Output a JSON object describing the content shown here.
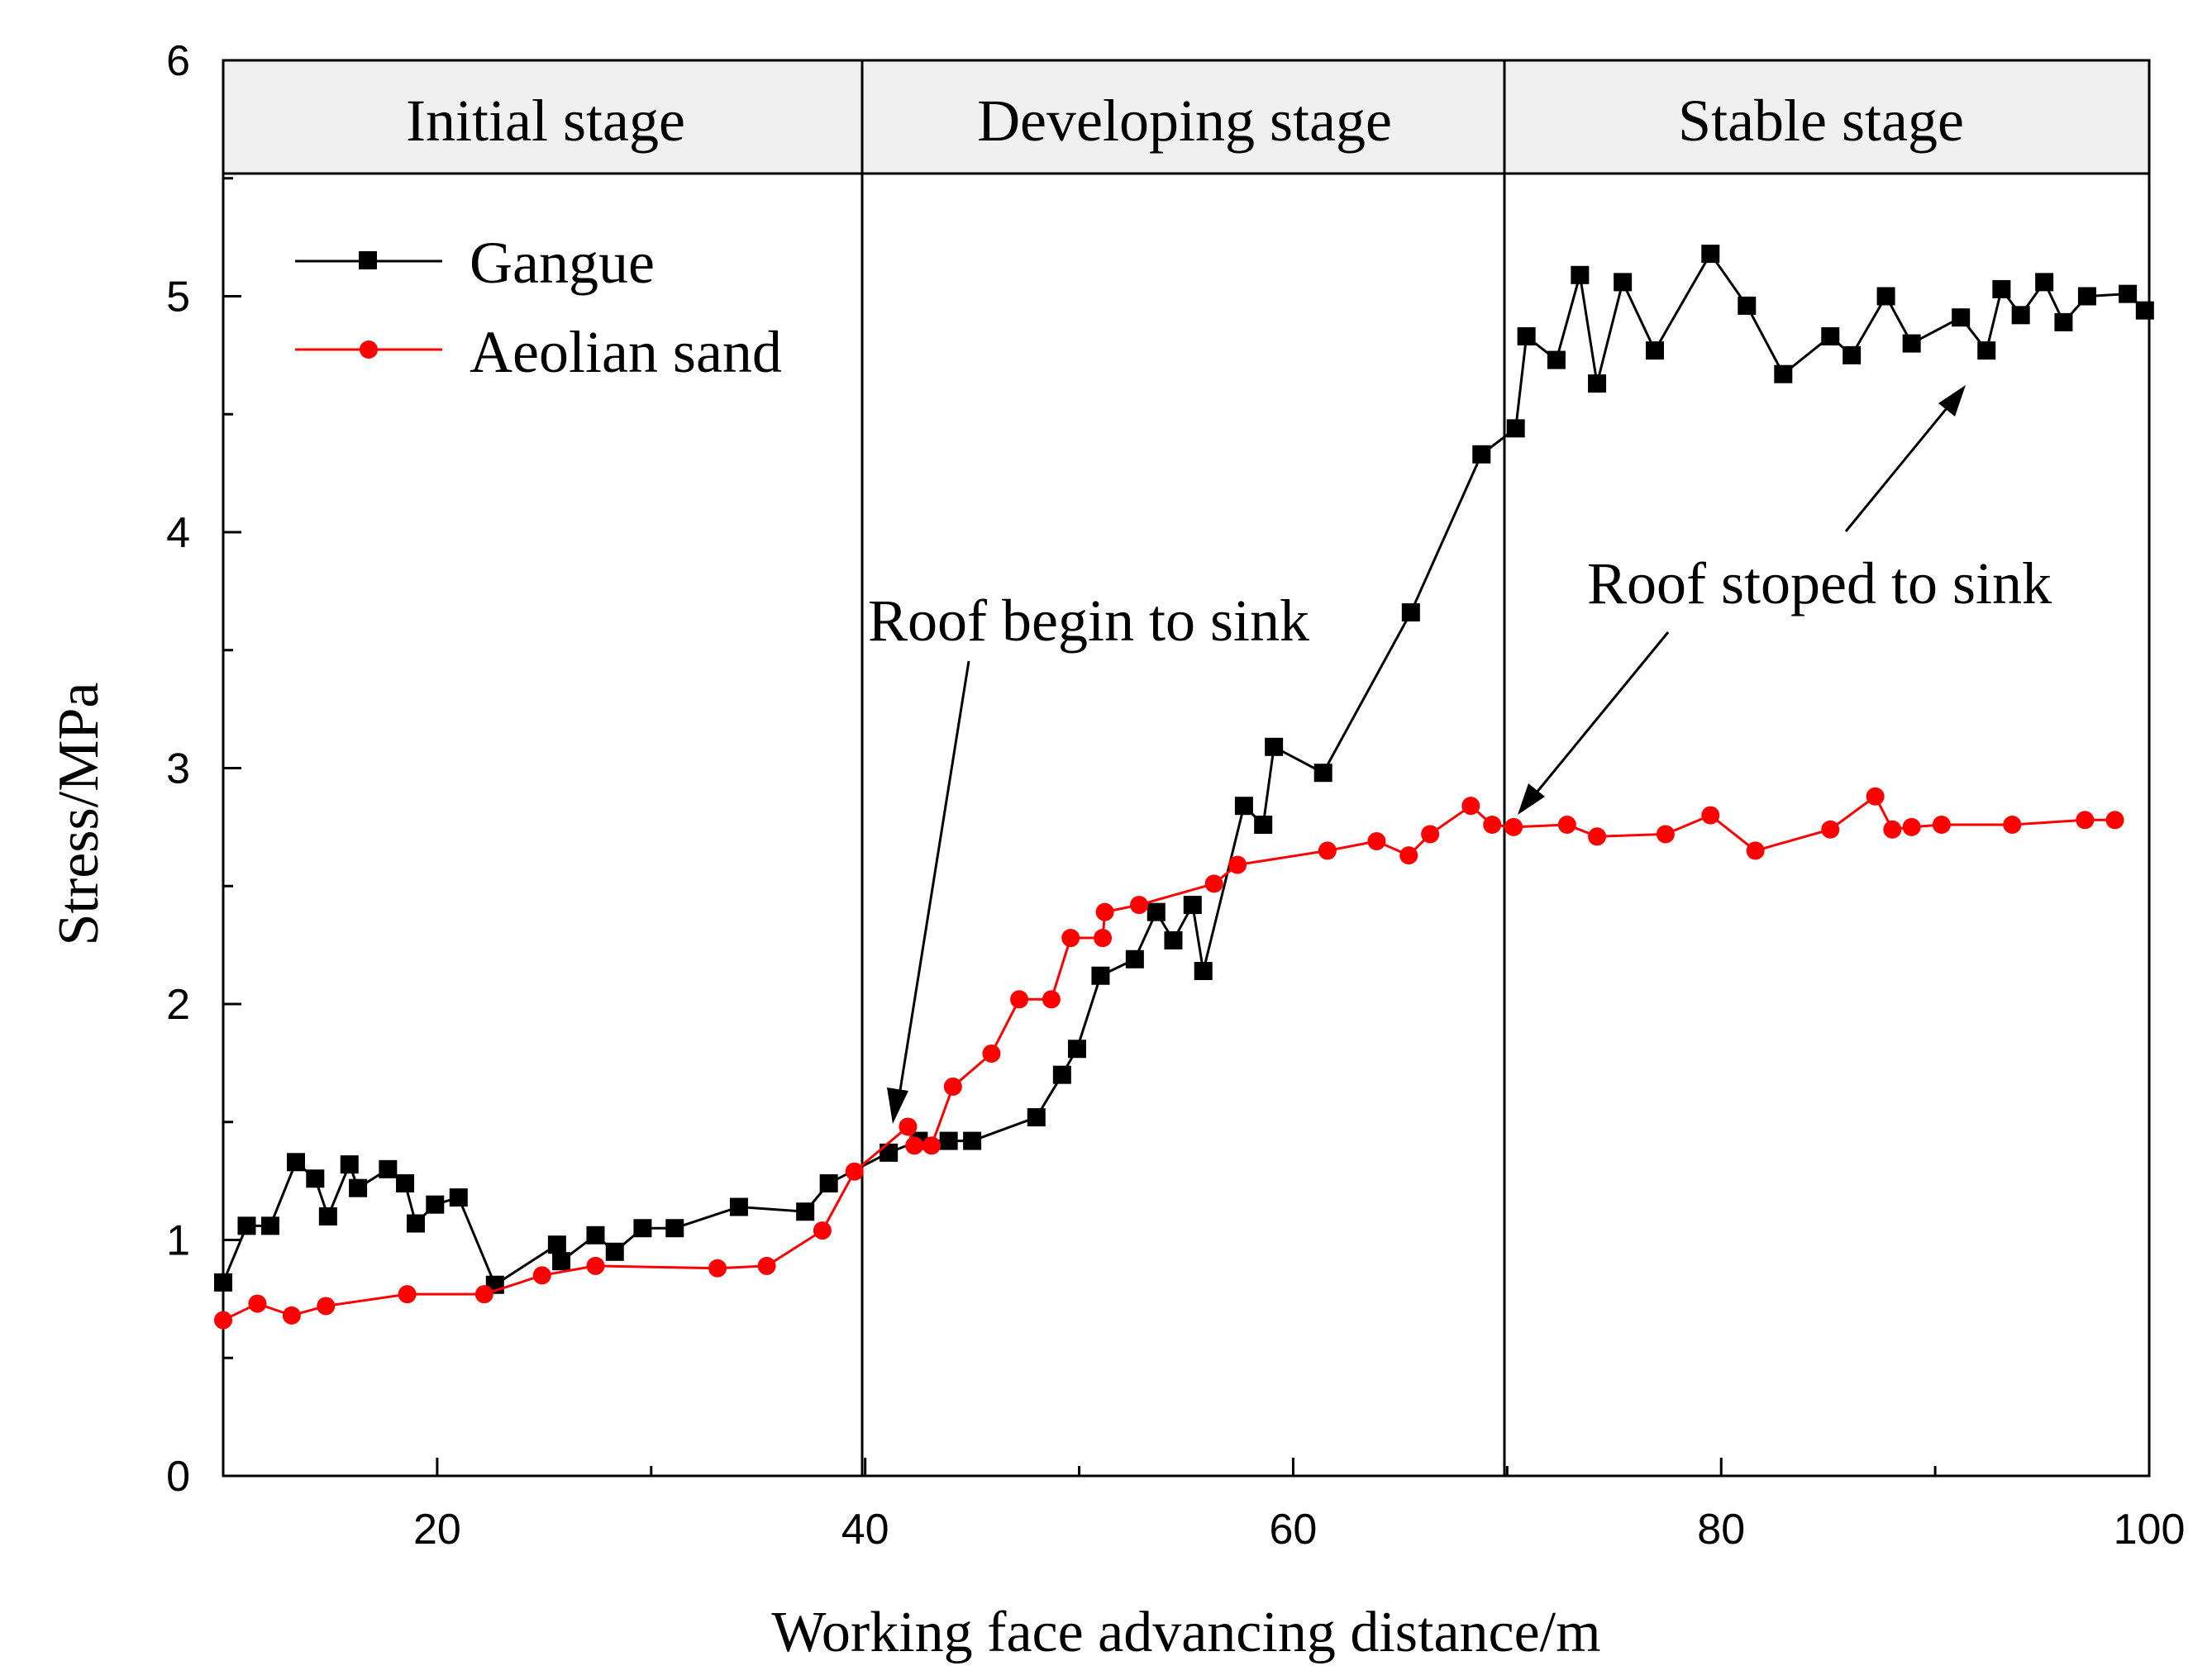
{
  "chart_data": {
    "type": "line",
    "xlabel": "Working face advancing distance/m",
    "ylabel": "Stress/MPa",
    "xlim": [
      10,
      100
    ],
    "ylim": [
      0,
      6
    ],
    "xticks": [
      20,
      40,
      60,
      80,
      100
    ],
    "yticks": [
      0,
      1,
      2,
      3,
      4,
      5,
      6
    ],
    "legend_position": "top-left",
    "stages": [
      {
        "label": "Initial stage",
        "x_start": 10,
        "x_end": 40
      },
      {
        "label": "Developing stage",
        "x_start": 40,
        "x_end": 70
      },
      {
        "label": "Stable stage",
        "x_start": 70,
        "x_end": 100
      }
    ],
    "annotations": [
      {
        "text": "Roof begin to sink",
        "point_x": 41.5,
        "point_y": 1.5
      },
      {
        "text": "Roof stoped to sink",
        "point_x": 70.8,
        "point_y": 2.8,
        "point2_x": 91.8,
        "point2_y": 4.65
      }
    ],
    "series": [
      {
        "name": "Gangue",
        "color": "#000000",
        "marker": "square",
        "x": [
          10,
          11.1,
          12.2,
          13.4,
          14.3,
          14.9,
          15.9,
          16.3,
          17.7,
          18.5,
          19,
          19.9,
          21,
          22.7,
          25.6,
          25.8,
          27.4,
          28.3,
          29.6,
          31.1,
          34.1,
          37.2,
          38.3,
          41.1,
          42.5,
          43.9,
          45,
          48,
          49.2,
          49.9,
          51,
          52.6,
          53.6,
          54.4,
          55.3,
          55.8,
          57.7,
          58.6,
          59.1,
          61.4,
          65.5,
          68.8,
          70.4,
          70.9,
          72.3,
          73.4,
          74.2,
          75.4,
          76.9,
          79.5,
          81.2,
          82.9,
          85.1,
          86.1,
          87.7,
          88.9,
          91.2,
          92.4,
          93.1,
          94,
          95.1,
          96,
          97.1,
          99,
          99.8
        ],
        "y": [
          0.82,
          1.06,
          1.06,
          1.33,
          1.26,
          1.1,
          1.32,
          1.22,
          1.3,
          1.24,
          1.07,
          1.15,
          1.18,
          0.81,
          0.98,
          0.91,
          1.02,
          0.95,
          1.05,
          1.05,
          1.14,
          1.12,
          1.24,
          1.37,
          1.42,
          1.42,
          1.42,
          1.52,
          1.7,
          1.81,
          2.12,
          2.19,
          2.39,
          2.27,
          2.42,
          2.14,
          2.84,
          2.76,
          3.09,
          2.98,
          3.66,
          4.33,
          4.44,
          4.83,
          4.73,
          5.09,
          4.63,
          5.06,
          4.77,
          5.18,
          4.96,
          4.67,
          4.83,
          4.75,
          5.0,
          4.8,
          4.91,
          4.77,
          5.03,
          4.92,
          5.06,
          4.89,
          5.0,
          5.01,
          4.94
        ]
      },
      {
        "name": "Aeolian sand",
        "color": "#ff0000",
        "marker": "circle",
        "x": [
          10,
          11.6,
          13.2,
          14.8,
          18.6,
          22.2,
          24.9,
          27.4,
          33.1,
          35.4,
          38,
          39.5,
          42,
          42.3,
          43.1,
          44.1,
          45.9,
          47.2,
          48.7,
          49.6,
          51.1,
          51.2,
          52.8,
          56.3,
          57.4,
          61.6,
          63.9,
          65.4,
          66.4,
          68.3,
          69.3,
          70.3,
          72.8,
          74.2,
          77.4,
          79.5,
          81.6,
          85.1,
          87.2,
          88,
          88.9,
          90.3,
          93.6,
          97,
          98.4
        ],
        "y": [
          0.66,
          0.73,
          0.68,
          0.72,
          0.77,
          0.77,
          0.85,
          0.89,
          0.88,
          0.89,
          1.04,
          1.29,
          1.48,
          1.4,
          1.4,
          1.65,
          1.79,
          2.02,
          2.02,
          2.28,
          2.28,
          2.39,
          2.42,
          2.51,
          2.59,
          2.65,
          2.69,
          2.63,
          2.72,
          2.84,
          2.76,
          2.75,
          2.76,
          2.71,
          2.72,
          2.8,
          2.65,
          2.74,
          2.88,
          2.74,
          2.75,
          2.76,
          2.76,
          2.78,
          2.78
        ]
      }
    ]
  }
}
